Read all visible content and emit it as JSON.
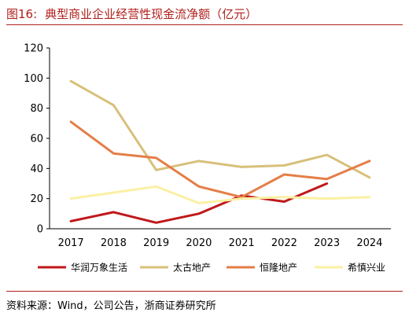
{
  "figure": {
    "label": "图16:",
    "title": "典型商业企业经营性现金流净额（亿元）",
    "source": "资料来源：Wind，公司公告，浙商证券研究所"
  },
  "chart_data": {
    "type": "line",
    "x": [
      "2017",
      "2018",
      "2019",
      "2020",
      "2021",
      "2022",
      "2023",
      "2024"
    ],
    "ylim": [
      0,
      120
    ],
    "yticks": [
      "0",
      "20",
      "40",
      "60",
      "80",
      "100",
      "120"
    ],
    "grid": false,
    "legend_position": "bottom",
    "series": [
      {
        "name": "华润万象生活",
        "color": "#c0181b",
        "values": [
          5,
          11,
          4,
          10,
          22,
          18,
          30,
          null
        ]
      },
      {
        "name": "太古地产",
        "color": "#d8c07a",
        "values": [
          98,
          82,
          39,
          45,
          41,
          42,
          49,
          34
        ]
      },
      {
        "name": "恒隆地产",
        "color": "#e57e47",
        "values": [
          71,
          50,
          47,
          28,
          21,
          36,
          33,
          45
        ]
      },
      {
        "name": "希慎兴业",
        "color": "#fbf0a4",
        "values": [
          20,
          24,
          28,
          17,
          20,
          21,
          20,
          21
        ]
      }
    ]
  }
}
